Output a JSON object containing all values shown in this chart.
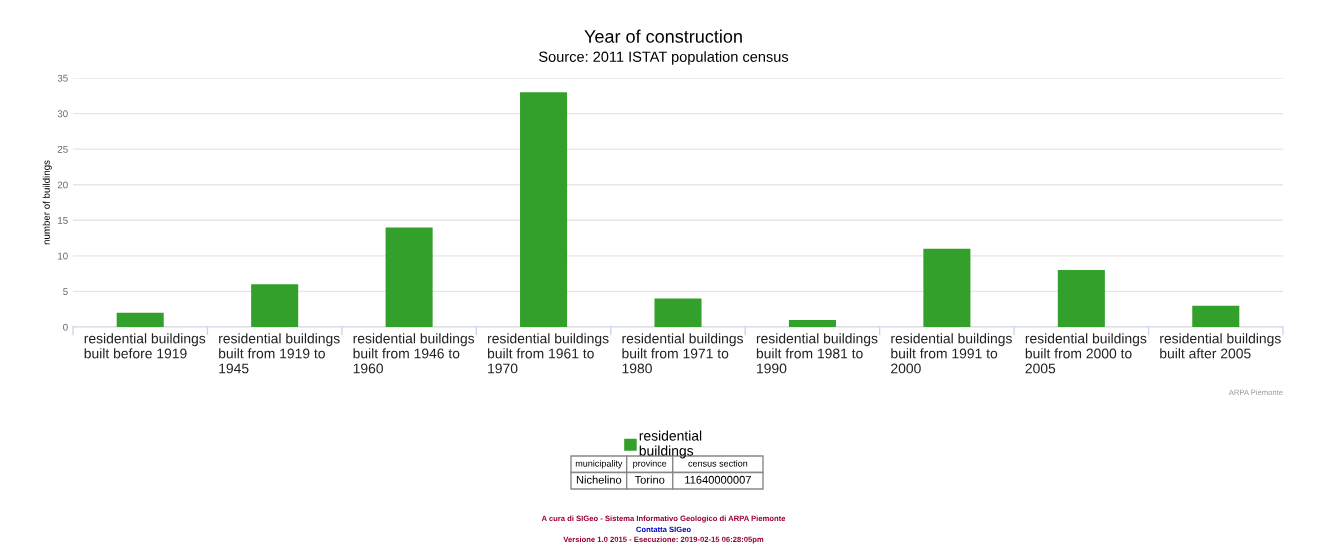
{
  "chart_data": {
    "type": "bar",
    "title": "Year of construction",
    "subtitle": "Source: 2011 ISTAT population census",
    "ylabel": "number of buildings",
    "categories": [
      "residential buildings built before 1919",
      "residential buildings built from 1919 to 1945",
      "residential buildings built from 1946 to 1960",
      "residential buildings built from 1961 to 1970",
      "residential buildings built from 1971 to 1980",
      "residential buildings built from 1981 to 1990",
      "residential buildings built from 1991 to 2000",
      "residential buildings built from 2000 to 2005",
      "residential buildings built after 2005"
    ],
    "series": [
      {
        "name": "residential buildings",
        "color": "#33a02c",
        "values": [
          2,
          6,
          14,
          33,
          4,
          1,
          11,
          8,
          3
        ]
      }
    ],
    "ylim": [
      0,
      35
    ],
    "yticks": [
      0,
      5,
      10,
      15,
      20,
      25,
      30,
      35
    ],
    "grid": "y",
    "legend": "bottom",
    "annotations": [
      "ARPA Piemonte",
      "municipality",
      "province",
      "census section",
      "Nichelino",
      "Torino",
      "11640000007",
      "A cura di SIGeo - Sistema Informativo Geologico di ARPA Piemonte",
      "Contatta SIGeo",
      "Versione 1.0 2015 - Esecuzione: 2019-02-15 06:28:05pm"
    ]
  }
}
